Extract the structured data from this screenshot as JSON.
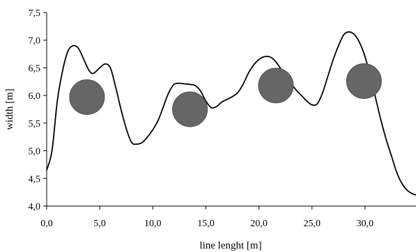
{
  "chart_data": {
    "type": "line",
    "xlabel": "line lenght [m]",
    "ylabel": "width [m]",
    "xlim": [
      0,
      34.8
    ],
    "ylim": [
      4.0,
      7.5
    ],
    "grid": false,
    "x_ticks": [
      "0,0",
      "5,0",
      "10,0",
      "15,0",
      "20,0",
      "25,0",
      "30,0"
    ],
    "x_tick_values": [
      0,
      5,
      10,
      15,
      20,
      25,
      30
    ],
    "y_ticks": [
      "4,0",
      "4,5",
      "5,0",
      "5,5",
      "6,0",
      "6,5",
      "7,0",
      "7,5"
    ],
    "y_tick_values": [
      4.0,
      4.5,
      5.0,
      5.5,
      6.0,
      6.5,
      7.0,
      7.5
    ],
    "series": [
      {
        "x": [
          0.0,
          0.5,
          1.0,
          1.5,
          2.0,
          2.5,
          3.0,
          3.5,
          4.0,
          4.4,
          5.0,
          5.5,
          6.0,
          6.5,
          7.0,
          7.5,
          8.0,
          8.5,
          9.0,
          9.5,
          10.0,
          10.5,
          11.0,
          11.5,
          12.0,
          12.5,
          13.0,
          13.5,
          14.0,
          14.5,
          15.0,
          15.5,
          16.0,
          16.5,
          17.0,
          17.5,
          18.0,
          18.5,
          19.0,
          19.5,
          20.0,
          20.5,
          21.0,
          21.5,
          22.0,
          22.5,
          23.0,
          23.5,
          24.0,
          24.5,
          25.0,
          25.5,
          26.0,
          26.5,
          27.0,
          27.5,
          28.0,
          28.5,
          29.0,
          29.5,
          30.0,
          30.5,
          31.0,
          31.5,
          32.0,
          32.5,
          33.0,
          33.5,
          34.0,
          34.5,
          34.8
        ],
        "y": [
          4.65,
          5.0,
          5.9,
          6.45,
          6.8,
          6.9,
          6.85,
          6.65,
          6.45,
          6.4,
          6.5,
          6.57,
          6.5,
          6.15,
          5.75,
          5.4,
          5.15,
          5.12,
          5.15,
          5.25,
          5.38,
          5.55,
          5.8,
          6.05,
          6.2,
          6.22,
          6.21,
          6.2,
          6.18,
          6.08,
          5.9,
          5.78,
          5.8,
          5.88,
          5.93,
          5.98,
          6.05,
          6.2,
          6.4,
          6.55,
          6.65,
          6.7,
          6.7,
          6.63,
          6.5,
          6.35,
          6.22,
          6.1,
          6.0,
          5.9,
          5.83,
          5.85,
          6.05,
          6.35,
          6.65,
          6.9,
          7.1,
          7.15,
          7.1,
          6.95,
          6.7,
          6.35,
          5.95,
          5.55,
          5.2,
          4.9,
          4.6,
          4.4,
          4.28,
          4.22,
          4.2
        ]
      }
    ],
    "markers": [
      {
        "x": 3.8,
        "y": 5.97
      },
      {
        "x": 13.5,
        "y": 5.75
      },
      {
        "x": 21.6,
        "y": 6.18
      },
      {
        "x": 29.9,
        "y": 6.26
      }
    ],
    "line_color": "#000000",
    "marker_color": "#666666",
    "marker_edge_color": "#4d4d4d"
  }
}
